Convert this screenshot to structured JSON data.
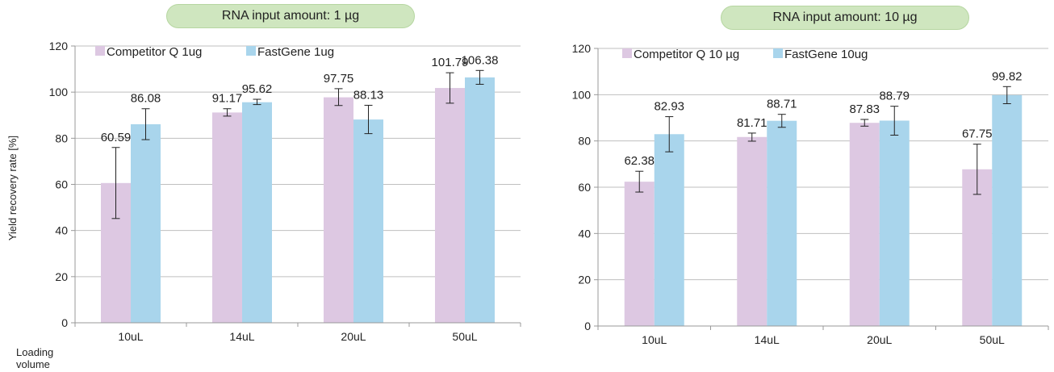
{
  "colors": {
    "competitor": "#ddc8e2",
    "fastgene": "#a9d5ec",
    "pill_bg": "#cfe6bf",
    "pill_border": "#b6d6a1",
    "axis": "#999999",
    "grid": "#bfbfbf",
    "error_bar": "#222222"
  },
  "axis_titles": {
    "ylabel": "Yield recovery rate [%]",
    "xlabel": "Loading volume"
  },
  "chart_data": [
    {
      "type": "bar",
      "title": "RNA input amount: 1 µg",
      "categories": [
        "10uL",
        "14uL",
        "20uL",
        "50uL"
      ],
      "ylim": [
        0,
        120
      ],
      "yticks": [
        "0",
        "20",
        "40",
        "60",
        "80",
        "100",
        "120"
      ],
      "grid": true,
      "legend_position": "top-left",
      "series": [
        {
          "name": "Competitor Q 1ug",
          "color_key": "competitor",
          "values": [
            60.59,
            91.17,
            97.75,
            101.79
          ],
          "labels": [
            "60.59",
            "91.17",
            "97.75",
            "101.79"
          ],
          "err_low": [
            45.2,
            89.6,
            94.2,
            95.2
          ],
          "err_high": [
            76.0,
            92.8,
            101.5,
            108.4
          ]
        },
        {
          "name": "FastGene 1ug",
          "color_key": "fastgene",
          "values": [
            86.08,
            95.62,
            88.13,
            106.38
          ],
          "labels": [
            "86.08",
            "95.62",
            "88.13",
            "106.38"
          ],
          "err_low": [
            79.4,
            94.6,
            82.0,
            103.4
          ],
          "err_high": [
            92.8,
            96.9,
            94.3,
            109.4
          ]
        }
      ]
    },
    {
      "type": "bar",
      "title": "RNA input amount: 10 µg",
      "categories": [
        "10uL",
        "14uL",
        "20uL",
        "50uL"
      ],
      "ylim": [
        0,
        120
      ],
      "yticks": [
        "0",
        "20",
        "40",
        "60",
        "80",
        "100",
        "120"
      ],
      "grid": true,
      "legend_position": "top-left",
      "series": [
        {
          "name": "Competitor Q 10 µg",
          "color_key": "competitor",
          "values": [
            62.38,
            81.71,
            87.83,
            67.75
          ],
          "labels": [
            "62.38",
            "81.71",
            "87.83",
            "67.75"
          ],
          "err_low": [
            57.9,
            79.9,
            86.4,
            56.9
          ],
          "err_high": [
            66.9,
            83.4,
            89.3,
            78.6
          ]
        },
        {
          "name": "FastGene 10ug",
          "color_key": "fastgene",
          "values": [
            82.93,
            88.71,
            88.79,
            99.82
          ],
          "labels": [
            "82.93",
            "88.71",
            "88.79",
            "99.82"
          ],
          "err_low": [
            75.3,
            85.9,
            82.5,
            96.1
          ],
          "err_high": [
            90.5,
            91.5,
            95.0,
            103.5
          ]
        }
      ]
    }
  ]
}
